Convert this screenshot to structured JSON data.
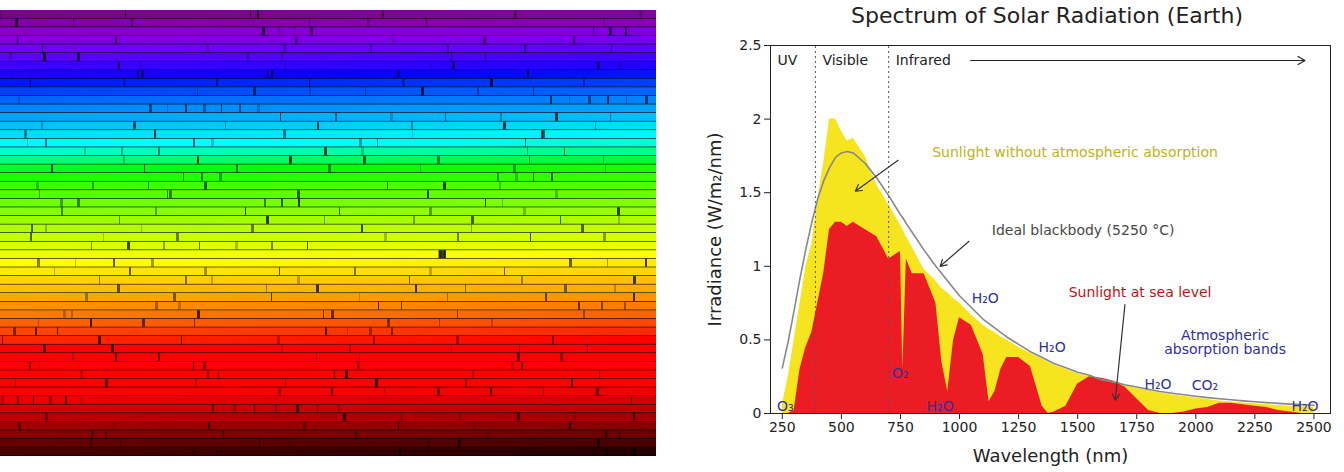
{
  "chart_data": {
    "type": "area",
    "title": "Spectrum of Solar Radiation (Earth)",
    "x_label": "Wavelength (nm)",
    "y_label": "Irradiance (W/m₂/nm)",
    "xlim": [
      200,
      2570
    ],
    "ylim": [
      0,
      2.5
    ],
    "xticks": [
      250,
      500,
      750,
      1000,
      1250,
      1500,
      1750,
      2000,
      2250,
      2500
    ],
    "yticks": [
      0,
      0.5,
      1,
      1.5,
      2,
      2.5
    ],
    "grid": false,
    "x": [
      250,
      275,
      300,
      325,
      350,
      375,
      400,
      425,
      450,
      475,
      500,
      525,
      550,
      600,
      650,
      700,
      750,
      760,
      775,
      800,
      850,
      900,
      925,
      950,
      975,
      1000,
      1050,
      1100,
      1125,
      1150,
      1175,
      1200,
      1250,
      1300,
      1350,
      1375,
      1400,
      1450,
      1500,
      1550,
      1600,
      1650,
      1700,
      1750,
      1800,
      1850,
      1900,
      1950,
      2000,
      2050,
      2100,
      2150,
      2200,
      2250,
      2300,
      2350,
      2400,
      2450,
      2500
    ],
    "series": [
      {
        "name": "Sunlight without atmospheric absorption",
        "type": "area",
        "color": "#f6e51e",
        "values": [
          0.06,
          0.25,
          0.5,
          0.75,
          1.0,
          1.15,
          1.45,
          1.7,
          2.0,
          2.0,
          1.92,
          1.85,
          1.87,
          1.75,
          1.55,
          1.42,
          1.28,
          1.25,
          1.2,
          1.13,
          0.98,
          0.9,
          0.85,
          0.82,
          0.78,
          0.75,
          0.67,
          0.6,
          0.57,
          0.55,
          0.52,
          0.5,
          0.45,
          0.41,
          0.37,
          0.35,
          0.33,
          0.3,
          0.27,
          0.25,
          0.24,
          0.22,
          0.19,
          0.17,
          0.155,
          0.14,
          0.125,
          0.115,
          0.105,
          0.095,
          0.085,
          0.078,
          0.072,
          0.066,
          0.06,
          0.055,
          0.05,
          0.046,
          0.042
        ],
        "label_at": [
          1489,
          1.77
        ],
        "arrow_from": [
          740,
          1.72
        ],
        "arrow_to": [
          559,
          1.51
        ]
      },
      {
        "name": "Sunlight at sea level",
        "type": "area",
        "color": "#ec1c24",
        "values": [
          0,
          0,
          0.02,
          0.3,
          0.45,
          0.55,
          0.75,
          0.95,
          1.25,
          1.3,
          1.3,
          1.27,
          1.3,
          1.25,
          1.2,
          1.05,
          1.1,
          0.3,
          1.05,
          0.95,
          0.95,
          0.75,
          0.35,
          0.15,
          0.5,
          0.65,
          0.6,
          0.4,
          0.08,
          0.15,
          0.3,
          0.38,
          0.38,
          0.32,
          0.05,
          0,
          0.01,
          0.05,
          0.2,
          0.25,
          0.24,
          0.22,
          0.18,
          0.1,
          0.02,
          0,
          0,
          0.01,
          0.03,
          0.04,
          0.07,
          0.07,
          0.06,
          0.05,
          0.04,
          0.02,
          0.01,
          0,
          0
        ],
        "label_at": [
          1764,
          0.82
        ],
        "arrow_from": [
          1700,
          0.74
        ],
        "arrow_to": [
          1659,
          0.09
        ]
      },
      {
        "name": "Ideal blackbody (5250 °C)",
        "type": "line",
        "color": "#888888",
        "values": [
          0.31,
          0.49,
          0.7,
          0.92,
          1.12,
          1.3,
          1.46,
          1.58,
          1.67,
          1.74,
          1.77,
          1.78,
          1.77,
          1.7,
          1.6,
          1.48,
          1.35,
          1.33,
          1.29,
          1.23,
          1.11,
          1.0,
          0.95,
          0.9,
          0.85,
          0.8,
          0.72,
          0.64,
          0.61,
          0.58,
          0.55,
          0.52,
          0.47,
          0.42,
          0.38,
          0.36,
          0.34,
          0.31,
          0.28,
          0.26,
          0.23,
          0.215,
          0.195,
          0.18,
          0.164,
          0.15,
          0.138,
          0.127,
          0.117,
          0.108,
          0.1,
          0.093,
          0.086,
          0.08,
          0.074,
          0.069,
          0.064,
          0.06,
          0.056
        ],
        "label_at": [
          1523,
          1.24
        ],
        "arrow_from": [
          1040,
          1.17
        ],
        "arrow_to": [
          918,
          1.0
        ]
      }
    ],
    "bands": [
      {
        "name": "UV",
        "start": 200,
        "end": 390
      },
      {
        "name": "Visible",
        "start": 390,
        "end": 700
      },
      {
        "name": "Infrared",
        "start": 700,
        "end": 2462
      }
    ],
    "annotations": [
      {
        "text": "Atmospheric\nabsorption bands",
        "x": 2124,
        "y": 0.48,
        "color": "#3030a0"
      },
      {
        "text": "O₃",
        "x": 263,
        "y": 0.05,
        "color": "#3030a0"
      },
      {
        "text": "O₂",
        "x": 749,
        "y": 0.27,
        "color": "#3030a0"
      },
      {
        "text": "H₂O",
        "x": 918,
        "y": 0.05,
        "color": "#3030a0"
      },
      {
        "text": "H₂O",
        "x": 1109,
        "y": 0.78,
        "color": "#3030a0"
      },
      {
        "text": "H₂O",
        "x": 1392,
        "y": 0.45,
        "color": "#3030a0"
      },
      {
        "text": "H₂O",
        "x": 1840,
        "y": 0.2,
        "color": "#3030a0"
      },
      {
        "text": "CO₂",
        "x": 2039,
        "y": 0.19,
        "color": "#3030a0"
      },
      {
        "text": "H₂O",
        "x": 2462,
        "y": 0.05,
        "color": "#3030a0"
      }
    ]
  }
}
